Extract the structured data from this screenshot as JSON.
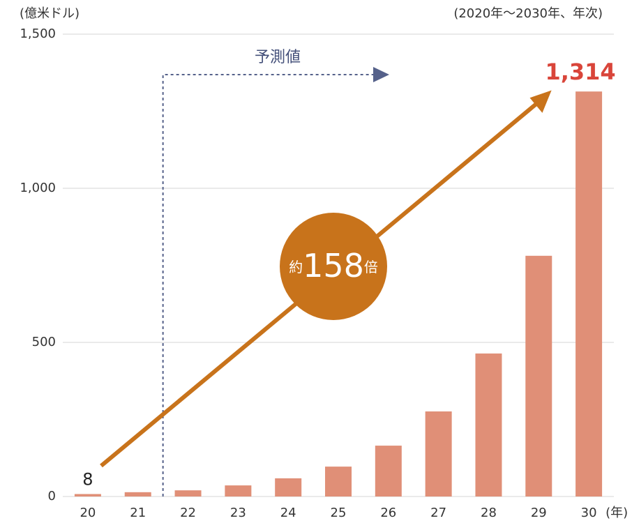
{
  "chart_data": {
    "type": "bar",
    "unit_label": "(億米ドル)",
    "subtitle": "(2020年～2030年、年次)",
    "x_unit": "(年)",
    "forecast_label": "予測値",
    "annotation": {
      "before": "約",
      "ratio": 158,
      "after": "倍"
    },
    "categories": [
      "20",
      "21",
      "22",
      "23",
      "24",
      "25",
      "26",
      "27",
      "28",
      "29",
      "30"
    ],
    "values": [
      8,
      14,
      20,
      36,
      59,
      97,
      165,
      276,
      464,
      781,
      1314
    ],
    "value_labels": [
      "8",
      null,
      null,
      null,
      null,
      null,
      null,
      null,
      null,
      null,
      "1,314"
    ],
    "color": "#e08f77",
    "ylim": [
      0,
      1500
    ],
    "yticks": [
      0,
      500,
      {
        "value": 1000,
        "label": "1,000"
      },
      {
        "value": 1500,
        "label": "1,500"
      }
    ],
    "grid": true
  }
}
